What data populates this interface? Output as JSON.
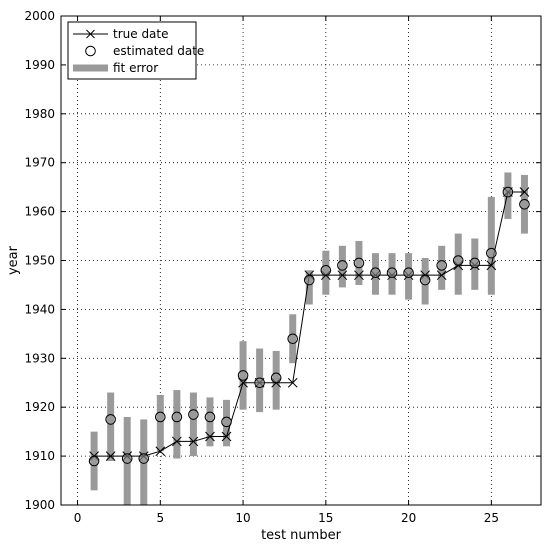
{
  "chart_data": {
    "type": "line",
    "title": "",
    "xlabel": "test number",
    "ylabel": "year",
    "xlim": [
      -1,
      28
    ],
    "ylim": [
      1900,
      2000
    ],
    "xticks": [
      0,
      5,
      10,
      15,
      20,
      25
    ],
    "yticks": [
      1900,
      1910,
      1920,
      1930,
      1940,
      1950,
      1960,
      1970,
      1980,
      1990,
      2000
    ],
    "grid": true,
    "legend_position": "top-left",
    "colors": {
      "line": "#000000",
      "marker": "#000000",
      "error_bar": "#9a9a9a",
      "estimate_fill": "#9a9a9a"
    },
    "series": [
      {
        "name": "true date",
        "marker": "x",
        "x": [
          1,
          2,
          3,
          4,
          5,
          6,
          7,
          8,
          9,
          10,
          11,
          12,
          13,
          14,
          15,
          16,
          17,
          18,
          19,
          20,
          21,
          22,
          23,
          24,
          25,
          26,
          27
        ],
        "values": [
          1910,
          1910,
          1910,
          1910,
          1911,
          1913,
          1913,
          1914,
          1914,
          1925,
          1925,
          1925,
          1925,
          1947,
          1947,
          1947,
          1947,
          1947,
          1947,
          1947,
          1947,
          1947,
          1949,
          1949,
          1949,
          1964,
          1964
        ]
      },
      {
        "name": "estimated date",
        "marker": "o",
        "x": [
          1,
          2,
          3,
          4,
          5,
          6,
          7,
          8,
          9,
          10,
          11,
          12,
          13,
          14,
          15,
          16,
          17,
          18,
          19,
          20,
          21,
          22,
          23,
          24,
          25,
          26,
          27
        ],
        "values": [
          1909,
          1917.5,
          1909.5,
          1909.5,
          1918,
          1918,
          1918.5,
          1918,
          1917,
          1926.5,
          1925,
          1926,
          1934,
          1946,
          1948,
          1949,
          1949.5,
          1947.5,
          1947.5,
          1947.5,
          1946,
          1949,
          1950,
          1949.5,
          1951.5,
          1964,
          1961.5
        ]
      },
      {
        "name": "fit error",
        "marker": "bar",
        "x": [
          1,
          2,
          3,
          4,
          5,
          6,
          7,
          8,
          9,
          10,
          11,
          12,
          13,
          14,
          15,
          16,
          17,
          18,
          19,
          20,
          21,
          22,
          23,
          24,
          25,
          26,
          27
        ],
        "low": [
          1903,
          1909,
          1900,
          1900,
          1911,
          1909.5,
          1910,
          1912,
          1912,
          1919.5,
          1919,
          1919.5,
          1929,
          1941,
          1943,
          1944.5,
          1945,
          1943,
          1943,
          1942,
          1941,
          1944,
          1943,
          1944,
          1943,
          1958.5,
          1955.5
        ],
        "high": [
          1915,
          1923,
          1918,
          1917.5,
          1922.5,
          1923.5,
          1923,
          1922,
          1921.5,
          1933.5,
          1932,
          1931.5,
          1939,
          1948,
          1952,
          1953,
          1954,
          1951.5,
          1951.5,
          1951.5,
          1950.5,
          1953,
          1955.5,
          1954.5,
          1963,
          1968,
          1967.5
        ]
      }
    ]
  }
}
